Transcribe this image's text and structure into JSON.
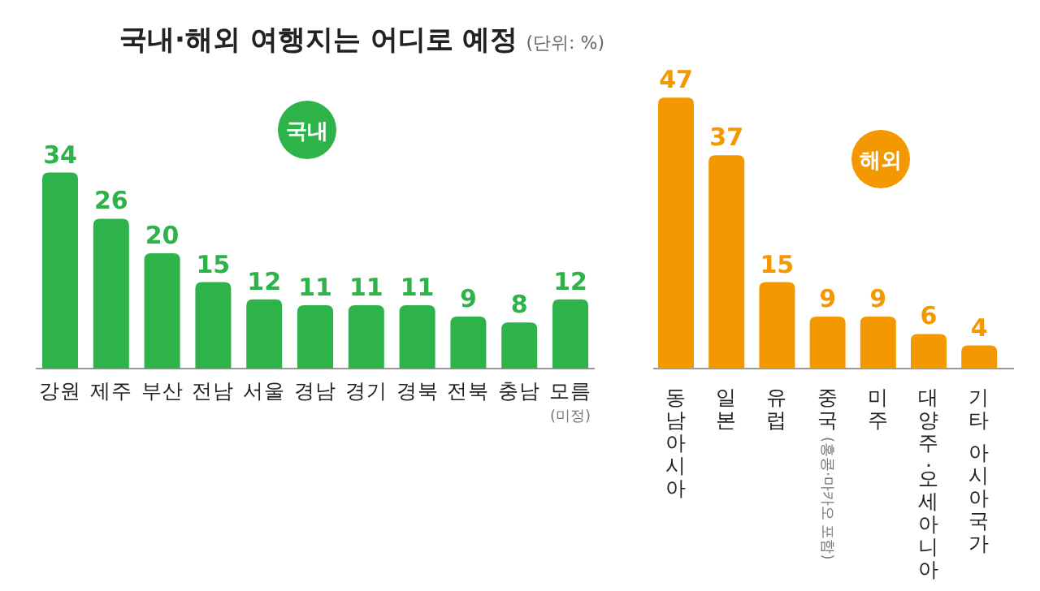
{
  "chart_data": [
    {
      "type": "bar",
      "title": "국내·해외 여행지는 어디로 예정",
      "subtitle": "(단위: %)",
      "annotations": [
        "국내"
      ],
      "categories": [
        "강원",
        "제주",
        "부산",
        "전남",
        "서울",
        "경남",
        "경기",
        "경북",
        "전북",
        "충남",
        "모름(미정)"
      ],
      "values": [
        34,
        26,
        20,
        15,
        12,
        11,
        11,
        11,
        9,
        8,
        12
      ],
      "color": "#2db34a",
      "data_labels": true
    },
    {
      "type": "bar",
      "annotations": [
        "해외"
      ],
      "categories": [
        "동남아시아",
        "일본",
        "유럽",
        "중국(홍콩·마카오 포함)",
        "미주",
        "대양주·오세아니아",
        "기타 아시아국가"
      ],
      "values": [
        47,
        37,
        15,
        9,
        9,
        6,
        4
      ],
      "color": "#f39800",
      "data_labels": true
    }
  ]
}
